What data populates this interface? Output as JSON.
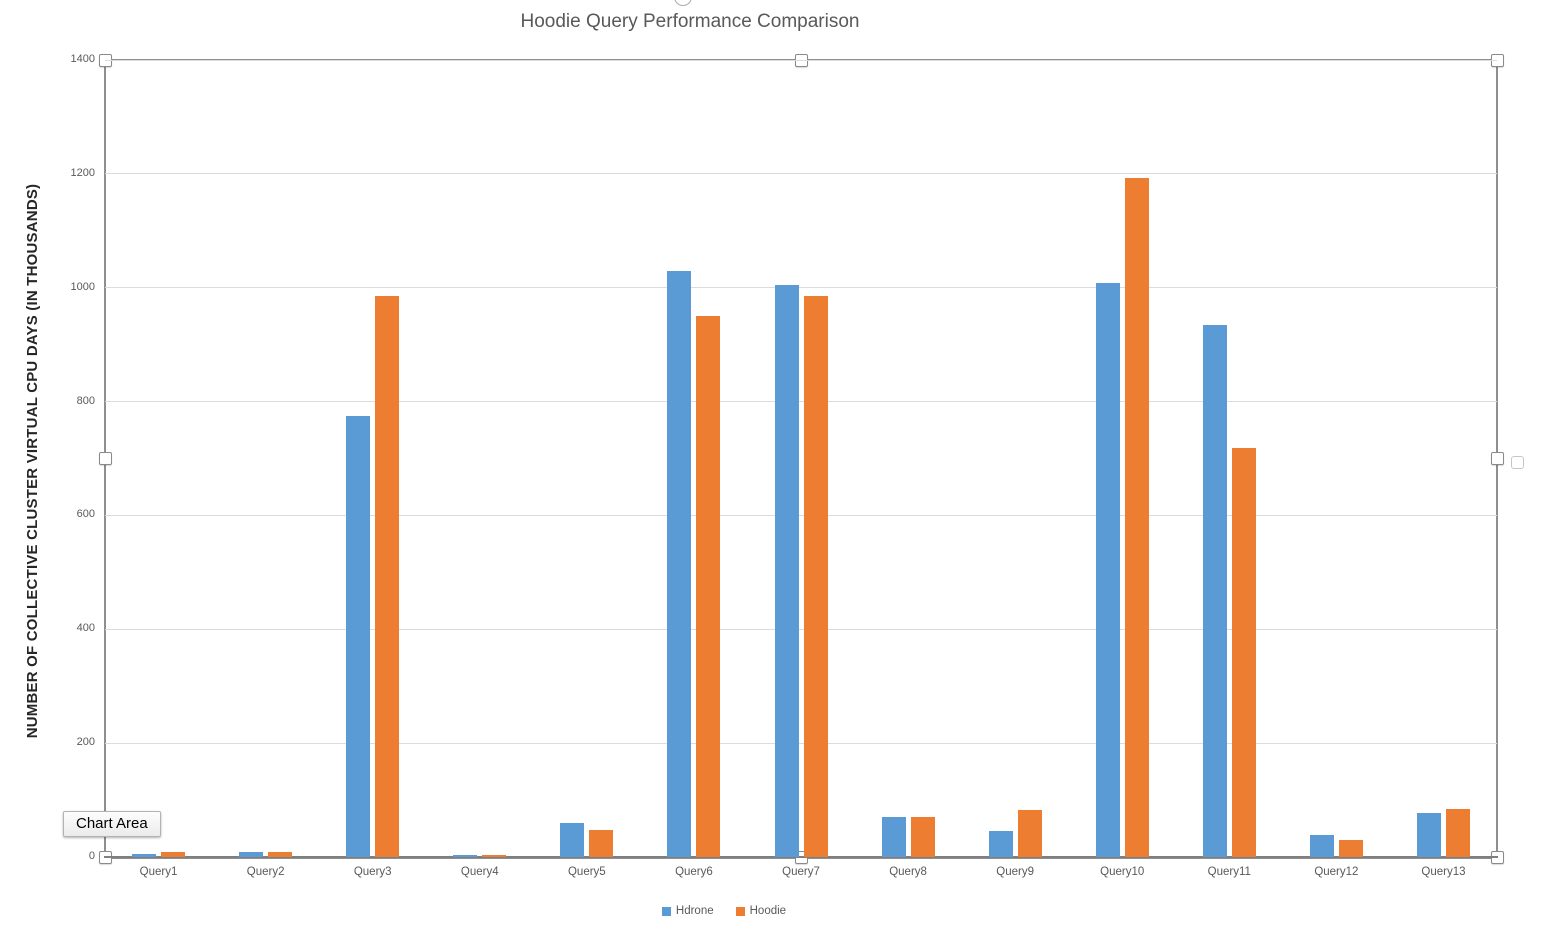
{
  "tooltip": {
    "label": "Chart Area"
  },
  "chart_data": {
    "type": "bar",
    "title": "Hoodie Query Performance Comparison",
    "xlabel": "",
    "ylabel": "NUMBER OF COLLECTIVE CLUSTER VIRTUAL CPU DAYS (IN THOUSANDS)",
    "ylim": [
      0,
      1400
    ],
    "yticks": [
      0,
      200,
      400,
      600,
      800,
      1000,
      1200,
      1400
    ],
    "grid": true,
    "legend_position": "bottom",
    "categories": [
      "Query1",
      "Query2",
      "Query3",
      "Query4",
      "Query5",
      "Query6",
      "Query7",
      "Query8",
      "Query9",
      "Query10",
      "Query11",
      "Query12",
      "Query13"
    ],
    "series": [
      {
        "name": "Hdrone",
        "color": "#5B9BD5",
        "values": [
          5,
          8,
          775,
          4,
          60,
          1030,
          1005,
          70,
          45,
          1008,
          935,
          39,
          77
        ]
      },
      {
        "name": "Hoodie",
        "color": "#ED7D31",
        "values": [
          8,
          8,
          985,
          4,
          48,
          950,
          985,
          70,
          83,
          1192,
          718,
          30,
          85
        ]
      }
    ]
  },
  "colors": {
    "title": "#595959",
    "axis_text": "#595959",
    "gridline": "#dcdcdc",
    "axis_line": "#7f7f7f",
    "selection_frame": "#8f8f8f"
  }
}
